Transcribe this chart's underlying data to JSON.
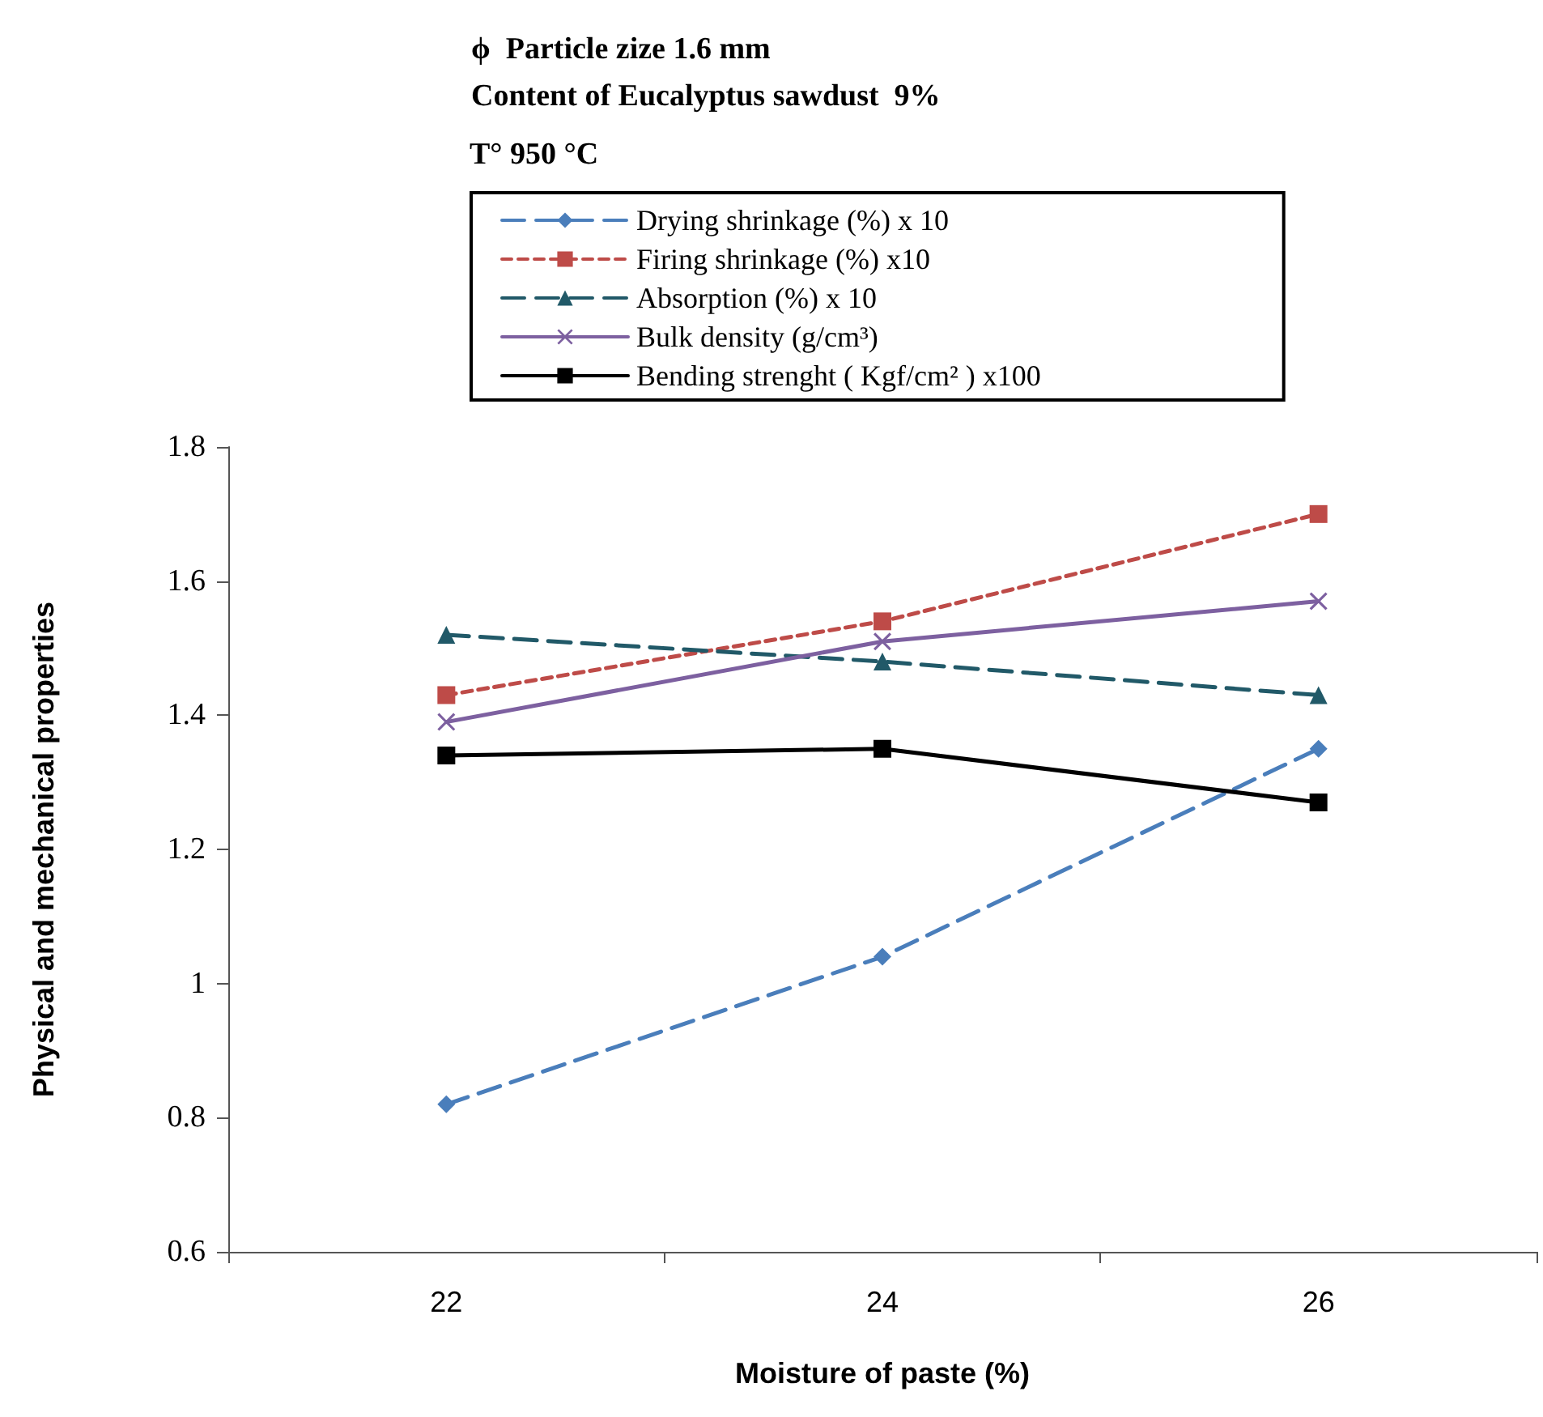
{
  "chart_data": {
    "type": "line",
    "title": "ϕ  Particle zize 1.6 mm",
    "subtitle": "Content of Eucalyptus sawdust  9%",
    "annotations": [
      "T° 950 °C"
    ],
    "xlabel": "Moisture of paste (%)",
    "ylabel": "Physical and mechanical properties",
    "categories": [
      "22",
      "24",
      "26"
    ],
    "series": [
      {
        "name": "Drying shrinkage (%) x 10",
        "color": "#4a7ebb",
        "values": [
          0.82,
          1.04,
          1.35
        ],
        "marker": "diamond",
        "line_style": "dashed"
      },
      {
        "name": "Firing shrinkage (%) x10",
        "color": "#be4b48",
        "values": [
          1.43,
          1.54,
          1.7
        ],
        "marker": "square",
        "line_style": "dotted"
      },
      {
        "name": "Absorption (%) x 10",
        "color": "#215968",
        "values": [
          1.52,
          1.48,
          1.43
        ],
        "marker": "triangle",
        "line_style": "dashed"
      },
      {
        "name": "Bulk density (g/cm³)",
        "color": "#7d60a0",
        "values": [
          1.39,
          1.51,
          1.57
        ],
        "marker": "cross",
        "line_style": "solid"
      },
      {
        "name": "Bending strenght ( Kgf/cm² ) x100",
        "color": "#000000",
        "values": [
          1.34,
          1.35,
          1.27
        ],
        "marker": "square",
        "line_style": "solid"
      }
    ],
    "ylim": [
      0.6,
      1.8
    ],
    "yticks": [
      0.6,
      0.8,
      1,
      1.2,
      1.4,
      1.6,
      1.8
    ],
    "grid": false,
    "legend": "top"
  }
}
